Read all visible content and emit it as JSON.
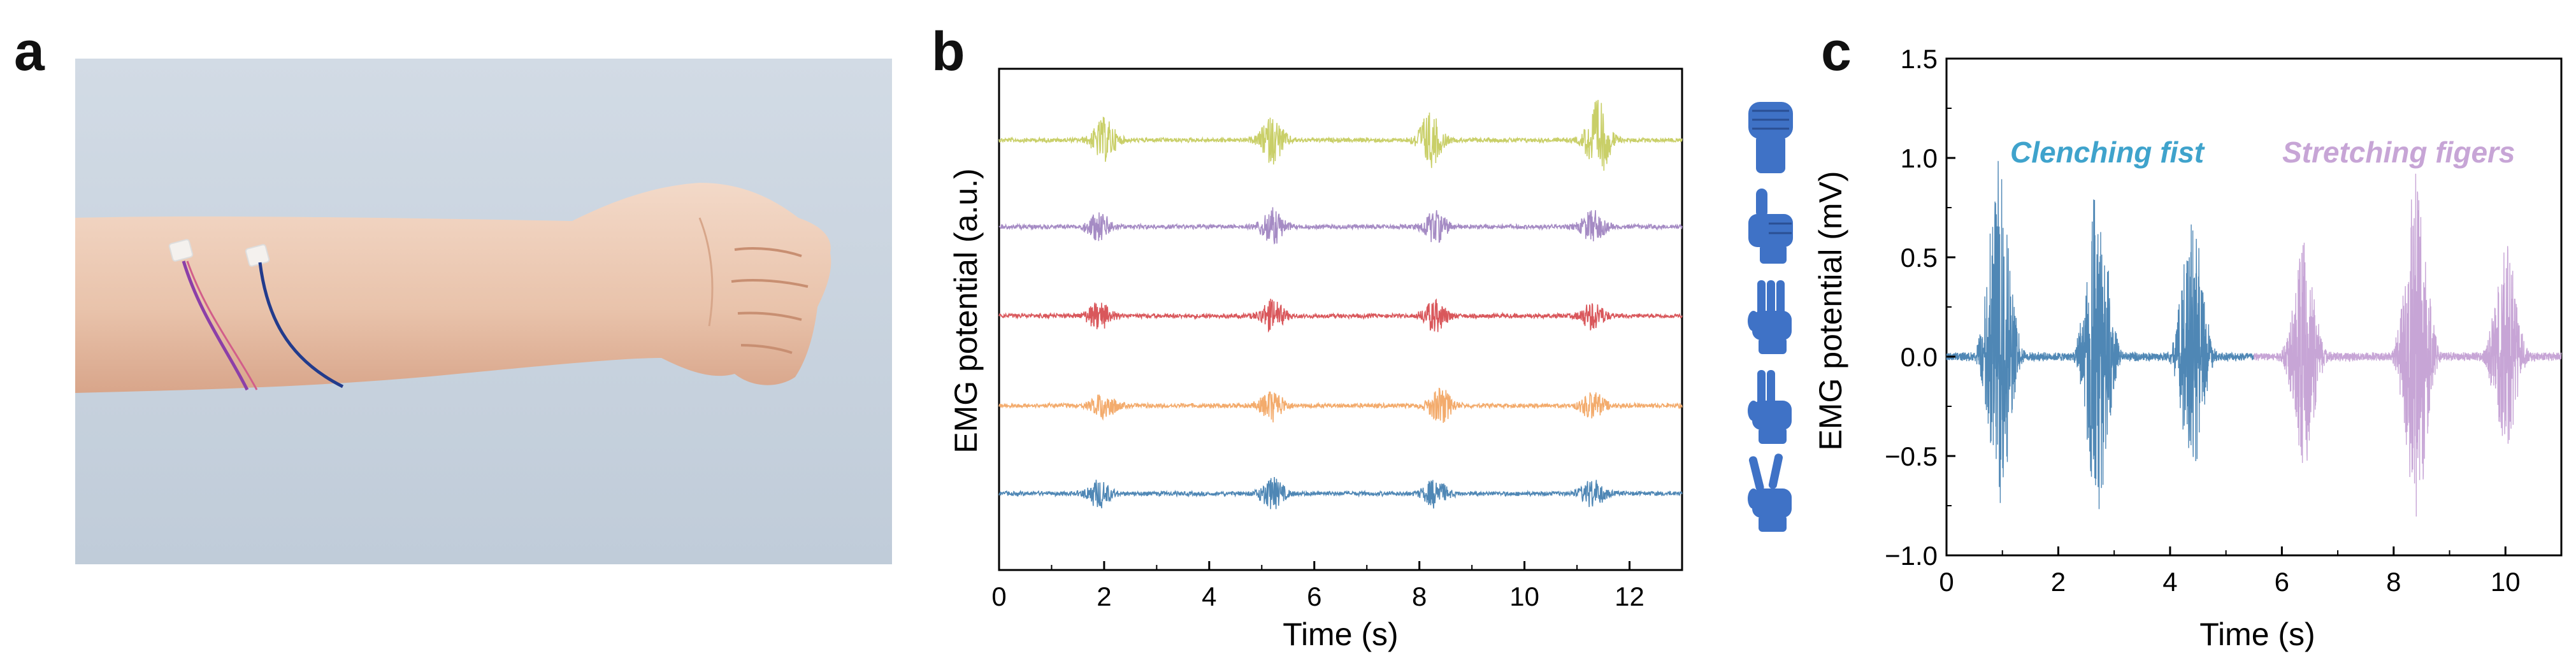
{
  "panels": {
    "a": "a",
    "b": "b",
    "c": "c"
  },
  "colors": {
    "yellow": "#C9CF68",
    "purple": "#A58BC4",
    "red": "#D9575B",
    "orange": "#F3AB6C",
    "blue": "#4F87B5",
    "lilac": "#C7A5D6",
    "glove": "#3F72C6",
    "background_photo": "#C7D2DE"
  },
  "chart_data": [
    {
      "type": "line",
      "panel": "b",
      "xlabel": "Time (s)",
      "ylabel": "EMG potential (a.u.)",
      "xlim": [
        0,
        13
      ],
      "xticks": [
        "0",
        "2",
        "4",
        "6",
        "8",
        "10",
        "12"
      ],
      "y_ticks_shown": false,
      "series": [
        {
          "color": "#C9CF68",
          "gesture_icon": "fist-glove-icon",
          "bursts_s": [
            2.0,
            5.2,
            8.2,
            11.4
          ],
          "burst_amplitude": [
            0.55,
            0.6,
            0.7,
            1.0
          ]
        },
        {
          "color": "#A58BC4",
          "gesture_icon": "thumbs-up-glove-icon",
          "bursts_s": [
            1.9,
            5.2,
            8.3,
            11.3
          ],
          "burst_amplitude": [
            0.35,
            0.45,
            0.4,
            0.4
          ]
        },
        {
          "color": "#D9575B",
          "gesture_icon": "three-fingers-glove-icon",
          "bursts_s": [
            1.9,
            5.2,
            8.3,
            11.3
          ],
          "burst_amplitude": [
            0.35,
            0.4,
            0.4,
            0.35
          ]
        },
        {
          "color": "#F3AB6C",
          "gesture_icon": "two-fingers-glove-icon",
          "bursts_s": [
            2.0,
            5.2,
            8.4,
            11.3
          ],
          "burst_amplitude": [
            0.35,
            0.4,
            0.45,
            0.35
          ]
        },
        {
          "color": "#4F87B5",
          "gesture_icon": "victory-glove-icon",
          "bursts_s": [
            1.9,
            5.2,
            8.3,
            11.3
          ],
          "burst_amplitude": [
            0.35,
            0.4,
            0.35,
            0.35
          ]
        }
      ]
    },
    {
      "type": "line",
      "panel": "c",
      "xlabel": "Time (s)",
      "ylabel": "EMG potential (mV)",
      "xlim": [
        0,
        11
      ],
      "ylim": [
        -1.0,
        1.5
      ],
      "xticks": [
        "0",
        "2",
        "4",
        "6",
        "8",
        "10"
      ],
      "yticks": [
        "−1.0",
        "−0.5",
        "0.0",
        "0.5",
        "1.0",
        "1.5"
      ],
      "ytick_values": [
        -1.0,
        -0.5,
        0.0,
        0.5,
        1.0,
        1.5
      ],
      "annotations": [
        {
          "text": "Clenching fist",
          "color": "#3FA3CC"
        },
        {
          "text": "Stretching figers",
          "color": "#C7A5D6"
        }
      ],
      "series": [
        {
          "color": "#4F87B5",
          "bursts": [
            {
              "center_s": 0.95,
              "max_mV": 1.03,
              "min_mV": -0.75
            },
            {
              "center_s": 2.7,
              "max_mV": 0.88,
              "min_mV": -0.78
            },
            {
              "center_s": 4.4,
              "max_mV": 0.72,
              "min_mV": -0.6
            }
          ]
        },
        {
          "color": "#C7A5D6",
          "bursts": [
            {
              "center_s": 6.4,
              "max_mV": 0.58,
              "min_mV": -0.55
            },
            {
              "center_s": 8.4,
              "max_mV": 0.95,
              "min_mV": -0.82
            },
            {
              "center_s": 10.0,
              "max_mV": 0.58,
              "min_mV": -0.5
            }
          ]
        }
      ]
    }
  ]
}
